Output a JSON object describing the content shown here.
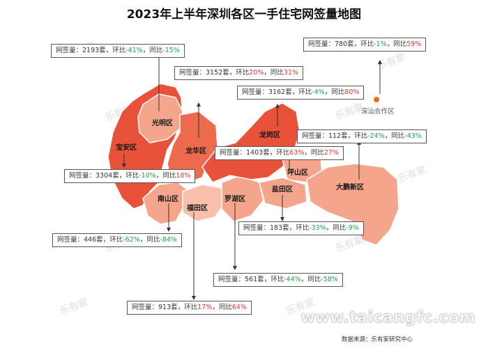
{
  "title": "2023年上半年深圳各区一手住宅网签量地图",
  "source": "数据来源：乐有家研究中心",
  "watermark": {
    "brand": "乐有家",
    "url": "www.taicangfc.com"
  },
  "colors": {
    "up": "#e03a2e",
    "down": "#22a050",
    "dark": "#e8513a",
    "mid": "#ee7a5e",
    "light": "#f4a58c",
    "lighter": "#f8c0aa"
  },
  "labels": {
    "sales": "网签量：",
    "mom": "环比",
    "yoy": "同比",
    "unit": "套"
  },
  "districts": [
    {
      "key": "guangming",
      "name": "光明区",
      "sales": "2193",
      "mom": "-41%",
      "yoy": "-15%",
      "mom_dir": "down",
      "yoy_dir": "down"
    },
    {
      "key": "baoan",
      "name": "宝安区",
      "sales": "3304",
      "mom": "-10%",
      "yoy": "18%",
      "mom_dir": "down",
      "yoy_dir": "up"
    },
    {
      "key": "longhua",
      "name": "龙华区",
      "sales": "3152",
      "mom": "20%",
      "yoy": "31%",
      "mom_dir": "up",
      "yoy_dir": "up"
    },
    {
      "key": "longgang",
      "name": "龙岗区",
      "sales": "3162",
      "mom": "-4%",
      "yoy": "80%",
      "mom_dir": "down",
      "yoy_dir": "up"
    },
    {
      "key": "shenshan",
      "name": "深汕合作区",
      "sales": "780",
      "mom": "-1%",
      "yoy": "59%",
      "mom_dir": "down",
      "yoy_dir": "up"
    },
    {
      "key": "dapeng",
      "name": "大鹏新区",
      "sales": "112",
      "mom": "-24%",
      "yoy": "-43%",
      "mom_dir": "down",
      "yoy_dir": "down"
    },
    {
      "key": "pingshan",
      "name": "坪山区",
      "sales": "1403",
      "mom": "63%",
      "yoy": "27%",
      "mom_dir": "up",
      "yoy_dir": "up"
    },
    {
      "key": "nanshan",
      "name": "南山区",
      "sales": "446",
      "mom": "-62%",
      "yoy": "-84%",
      "mom_dir": "down",
      "yoy_dir": "down"
    },
    {
      "key": "yantian",
      "name": "盐田区",
      "sales": "183",
      "mom": "-33%",
      "yoy": "-9%",
      "mom_dir": "down",
      "yoy_dir": "down"
    },
    {
      "key": "luohu",
      "name": "罗湖区",
      "sales": "561",
      "mom": "-44%",
      "yoy": "-58%",
      "mom_dir": "down",
      "yoy_dir": "down"
    },
    {
      "key": "futian",
      "name": "福田区",
      "sales": "913",
      "mom": "17%",
      "yoy": "64%",
      "mom_dir": "up",
      "yoy_dir": "up"
    }
  ]
}
